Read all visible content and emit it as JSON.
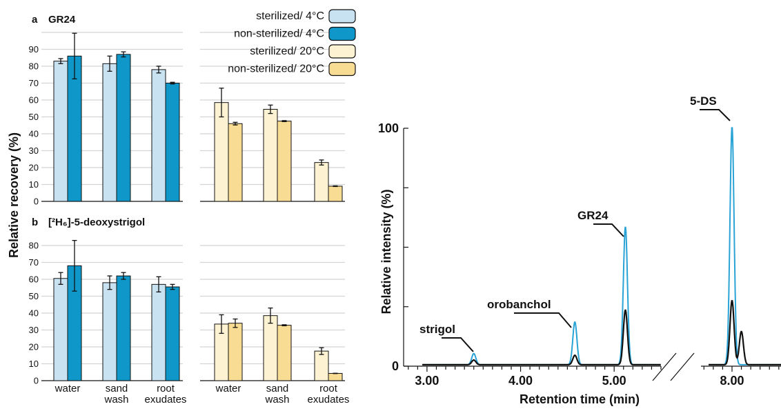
{
  "colors": {
    "ster4": "#c9e2f2",
    "nonster4": "#0e97c8",
    "ster20": "#fdf3d3",
    "nonster20": "#f8dc93",
    "trace_blue": "#29a3d6",
    "trace_black": "#111111"
  },
  "legend": [
    {
      "key": "ster4",
      "label": "sterilized/ 4°C"
    },
    {
      "key": "nonster4",
      "label": "non-sterilized/ 4°C"
    },
    {
      "key": "ster20",
      "label": "sterilized/ 20°C"
    },
    {
      "key": "nonster20",
      "label": "non-sterilized/ 20°C"
    }
  ],
  "ylabel_left": "Relative recovery (%)",
  "chart_data": [
    {
      "type": "bar",
      "panel": "a",
      "title": "GR24",
      "categories": [
        "water",
        "sand wash",
        "root exudates"
      ],
      "ylim": [
        0,
        100
      ],
      "yticks": [
        0,
        10,
        20,
        30,
        40,
        50,
        60,
        70,
        80,
        90
      ],
      "groups": [
        {
          "temperature": "4°C",
          "series": [
            {
              "name": "sterilized/ 4°C",
              "values": [
                83,
                81.5,
                78
              ],
              "errors": [
                1.5,
                4.5,
                2
              ]
            },
            {
              "name": "non-sterilized/ 4°C",
              "values": [
                86,
                87,
                70
              ],
              "errors": [
                13.5,
                1.5,
                0.5
              ]
            }
          ]
        },
        {
          "temperature": "20°C",
          "series": [
            {
              "name": "sterilized/ 20°C",
              "values": [
                58.5,
                54.5,
                23
              ],
              "errors": [
                8.5,
                2.5,
                1.5
              ]
            },
            {
              "name": "non-sterilized/ 20°C",
              "values": [
                46,
                47.5,
                9
              ],
              "errors": [
                0.8,
                0.3,
                0.2
              ]
            }
          ]
        }
      ]
    },
    {
      "type": "bar",
      "panel": "b",
      "title": "[²H₆]-5-deoxystrigol",
      "categories": [
        "water",
        "sand wash",
        "root exudates"
      ],
      "ylim": [
        0,
        85
      ],
      "yticks": [
        0,
        10,
        20,
        30,
        40,
        50,
        60,
        70,
        80
      ],
      "groups": [
        {
          "temperature": "4°C",
          "series": [
            {
              "name": "sterilized/ 4°C",
              "values": [
                60.5,
                58,
                57
              ],
              "errors": [
                3.5,
                4,
                4.5
              ]
            },
            {
              "name": "non-sterilized/ 4°C",
              "values": [
                68,
                62,
                55.5
              ],
              "errors": [
                15,
                2,
                1.5
              ]
            }
          ]
        },
        {
          "temperature": "20°C",
          "series": [
            {
              "name": "sterilized/ 20°C",
              "values": [
                33.5,
                38.5,
                17.5
              ],
              "errors": [
                5.5,
                4.5,
                2
              ]
            },
            {
              "name": "non-sterilized/ 20°C",
              "values": [
                34,
                32.8,
                4.3
              ],
              "errors": [
                2.5,
                0.3,
                0.1
              ]
            }
          ]
        }
      ]
    },
    {
      "type": "line",
      "panel": "chromatogram",
      "xlabel": "Retention time (min)",
      "ylabel": "Relative intensity (%)",
      "xticks": [
        "3.00",
        "4.00",
        "5.00",
        "8.00"
      ],
      "yticks": [
        "0",
        "100"
      ],
      "xlim_segments": [
        [
          2.75,
          5.5
        ],
        [
          7.55,
          8.55
        ]
      ],
      "ylim": [
        0,
        100
      ],
      "peaks": [
        {
          "label": "strigol",
          "rt": 3.5,
          "blue": 4.7,
          "black": 2
        },
        {
          "label": "orobanchol",
          "rt": 4.58,
          "blue": 18,
          "black": 4
        },
        {
          "label": "GR24",
          "rt": 5.12,
          "blue": 58,
          "black": 23
        },
        {
          "label": "5-DS",
          "rt": 8.0,
          "blue": 100,
          "black": 27
        }
      ],
      "extra_black_peaks": [
        {
          "rt": 8.1,
          "black": 14
        }
      ]
    }
  ]
}
